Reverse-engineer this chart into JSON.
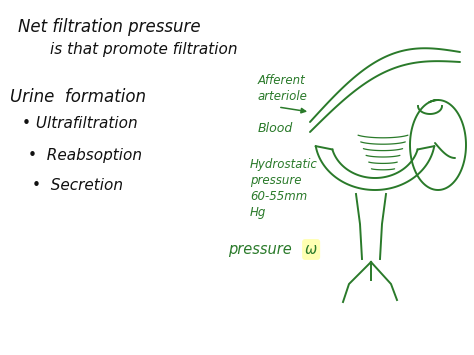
{
  "bg_color": "#ffffff",
  "title_line1": "Net filtration pressure",
  "title_line2": "is that promote filtration",
  "urine_header": "Urine  formation",
  "bullet1": "• Ultrafiltration",
  "bullet2": "•  Reabsoption",
  "bullet3": "•  Secretion",
  "label_afferent": "Afferent\narteriole",
  "label_blood": "Blood",
  "label_hydrostatic": "Hydrostatic\npressure\n60-55mm\nHg",
  "label_pressure": "pressure ω",
  "text_black": "#111111",
  "text_green": "#2a7a2a",
  "highlight": "#ffffaa",
  "fig_w": 4.74,
  "fig_h": 3.55,
  "dpi": 100
}
